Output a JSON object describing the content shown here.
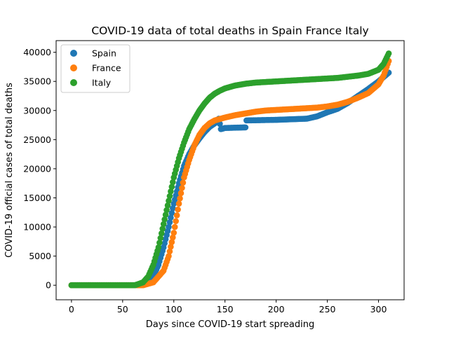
{
  "chart_data": {
    "type": "scatter",
    "title": "COVID-19 data of total deaths in Spain France Italy",
    "xlabel": "Days since COVID-19 start spreading",
    "ylabel": "COVID-19 official cases of total deaths",
    "xlim": [
      -15,
      325
    ],
    "ylim": [
      -2500,
      42000
    ],
    "xticks": [
      0,
      50,
      100,
      150,
      200,
      250,
      300
    ],
    "yticks": [
      0,
      5000,
      10000,
      15000,
      20000,
      25000,
      30000,
      35000,
      40000
    ],
    "xtick_labels": [
      "0",
      "50",
      "100",
      "150",
      "200",
      "250",
      "300"
    ],
    "ytick_labels": [
      "0",
      "5000",
      "10000",
      "15000",
      "20000",
      "25000",
      "30000",
      "35000",
      "40000"
    ],
    "grid": false,
    "legend_position": "top-left",
    "day_range": [
      0,
      310
    ],
    "series": [
      {
        "name": "Spain",
        "color": "#1f77b4",
        "points": [
          [
            0,
            0
          ],
          [
            60,
            0
          ],
          [
            70,
            100
          ],
          [
            75,
            500
          ],
          [
            80,
            1500
          ],
          [
            85,
            3500
          ],
          [
            90,
            6500
          ],
          [
            95,
            10000
          ],
          [
            100,
            14000
          ],
          [
            105,
            17500
          ],
          [
            110,
            20500
          ],
          [
            115,
            22500
          ],
          [
            120,
            24000
          ],
          [
            125,
            25200
          ],
          [
            130,
            26300
          ],
          [
            135,
            27200
          ],
          [
            140,
            27800
          ],
          [
            144,
            28600
          ],
          [
            146,
            26800
          ],
          [
            150,
            27000
          ],
          [
            170,
            27100
          ],
          [
            171,
            28300
          ],
          [
            200,
            28400
          ],
          [
            230,
            28600
          ],
          [
            240,
            29000
          ],
          [
            250,
            29700
          ],
          [
            260,
            30300
          ],
          [
            270,
            31300
          ],
          [
            280,
            32500
          ],
          [
            290,
            33700
          ],
          [
            300,
            35000
          ],
          [
            310,
            36500
          ]
        ]
      },
      {
        "name": "France",
        "color": "#ff7f0e",
        "points": [
          [
            0,
            0
          ],
          [
            70,
            0
          ],
          [
            80,
            500
          ],
          [
            90,
            2500
          ],
          [
            95,
            5000
          ],
          [
            100,
            9000
          ],
          [
            105,
            14000
          ],
          [
            110,
            18500
          ],
          [
            115,
            21500
          ],
          [
            120,
            24000
          ],
          [
            125,
            25800
          ],
          [
            130,
            27000
          ],
          [
            135,
            27800
          ],
          [
            140,
            28300
          ],
          [
            150,
            28800
          ],
          [
            160,
            29200
          ],
          [
            170,
            29500
          ],
          [
            180,
            29800
          ],
          [
            190,
            30000
          ],
          [
            200,
            30100
          ],
          [
            220,
            30300
          ],
          [
            240,
            30500
          ],
          [
            250,
            30700
          ],
          [
            260,
            31000
          ],
          [
            270,
            31500
          ],
          [
            280,
            32200
          ],
          [
            290,
            33000
          ],
          [
            300,
            34500
          ],
          [
            305,
            36000
          ],
          [
            310,
            38500
          ]
        ]
      },
      {
        "name": "Italy",
        "color": "#2ca02c",
        "points": [
          [
            0,
            0
          ],
          [
            62,
            0
          ],
          [
            70,
            500
          ],
          [
            75,
            1500
          ],
          [
            80,
            3500
          ],
          [
            85,
            6500
          ],
          [
            90,
            10500
          ],
          [
            95,
            14500
          ],
          [
            100,
            18500
          ],
          [
            105,
            21800
          ],
          [
            110,
            24500
          ],
          [
            115,
            26800
          ],
          [
            120,
            28500
          ],
          [
            125,
            30000
          ],
          [
            130,
            31200
          ],
          [
            135,
            32200
          ],
          [
            140,
            32900
          ],
          [
            145,
            33400
          ],
          [
            150,
            33800
          ],
          [
            160,
            34300
          ],
          [
            170,
            34600
          ],
          [
            180,
            34800
          ],
          [
            200,
            35000
          ],
          [
            220,
            35200
          ],
          [
            240,
            35400
          ],
          [
            260,
            35600
          ],
          [
            270,
            35800
          ],
          [
            280,
            36000
          ],
          [
            290,
            36300
          ],
          [
            300,
            37000
          ],
          [
            305,
            38000
          ],
          [
            310,
            39800
          ]
        ]
      }
    ]
  }
}
